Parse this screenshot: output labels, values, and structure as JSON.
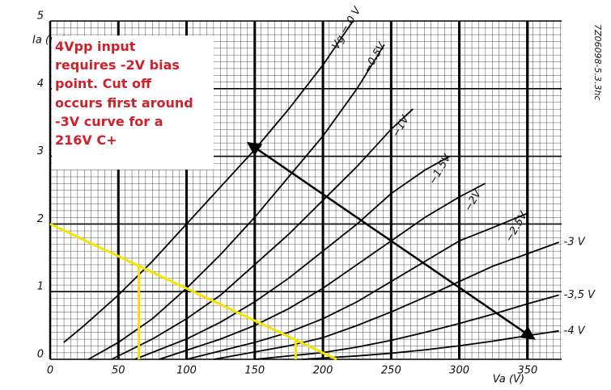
{
  "chart_data": {
    "type": "line",
    "y_label": "Ia (mA)",
    "x_label": "Va (V)",
    "side_code": "7Z06098-5.3.3hc",
    "annotation": [
      "4Vpp input",
      "requires -2V bias",
      "point. Cut off",
      "occurs first around",
      "-3V curve for a",
      "216V C+"
    ],
    "xlim": [
      0,
      375
    ],
    "ylim": [
      0,
      5
    ],
    "xticks": [
      0,
      50,
      100,
      150,
      200,
      250,
      300,
      350
    ],
    "yticks": [
      0,
      1,
      2,
      3,
      4,
      5
    ],
    "grid": true,
    "series": [
      {
        "name": "Vg = 0 V",
        "color": "#000000",
        "x": [
          10,
          25,
          50,
          75,
          100,
          125,
          150,
          175,
          200,
          222
        ],
        "values": [
          0.25,
          0.5,
          0.95,
          1.45,
          2.0,
          2.55,
          3.1,
          3.7,
          4.35,
          5.0
        ]
      },
      {
        "name": "−0.5V",
        "color": "#000000",
        "x": [
          28,
          50,
          75,
          100,
          125,
          150,
          175,
          200,
          225,
          245
        ],
        "values": [
          0,
          0.25,
          0.6,
          1.05,
          1.55,
          2.1,
          2.7,
          3.3,
          4.0,
          4.65
        ]
      },
      {
        "name": "−1V",
        "color": "#000000",
        "x": [
          45,
          75,
          100,
          125,
          150,
          175,
          200,
          225,
          250,
          266
        ],
        "values": [
          0,
          0.3,
          0.6,
          0.95,
          1.4,
          1.85,
          2.35,
          2.85,
          3.4,
          3.7
        ]
      },
      {
        "name": "−1.5V",
        "color": "#000000",
        "x": [
          62,
          100,
          125,
          150,
          175,
          200,
          225,
          250,
          275,
          293
        ],
        "values": [
          0,
          0.3,
          0.55,
          0.85,
          1.2,
          1.6,
          2.0,
          2.45,
          2.8,
          3.0
        ]
      },
      {
        "name": "−2V",
        "color": "#000000",
        "x": [
          80,
          125,
          150,
          175,
          200,
          225,
          250,
          275,
          300,
          319
        ],
        "values": [
          0,
          0.3,
          0.5,
          0.75,
          1.05,
          1.4,
          1.75,
          2.1,
          2.4,
          2.6
        ]
      },
      {
        "name": "−2.5V",
        "color": "#000000",
        "x": [
          100,
          150,
          175,
          200,
          225,
          250,
          275,
          300,
          325,
          349
        ],
        "values": [
          0,
          0.25,
          0.4,
          0.6,
          0.85,
          1.15,
          1.45,
          1.75,
          1.95,
          2.15
        ]
      },
      {
        "name": "-3 V",
        "color": "#000000",
        "x": [
          120,
          175,
          200,
          225,
          250,
          275,
          300,
          325,
          350,
          373
        ],
        "values": [
          0,
          0.2,
          0.32,
          0.5,
          0.7,
          0.92,
          1.15,
          1.38,
          1.56,
          1.73
        ]
      },
      {
        "name": "-3,5 V",
        "color": "#000000",
        "x": [
          150,
          200,
          225,
          250,
          275,
          300,
          325,
          350,
          373
        ],
        "values": [
          0,
          0.1,
          0.18,
          0.28,
          0.4,
          0.53,
          0.67,
          0.82,
          0.95
        ]
      },
      {
        "name": "-4 V",
        "color": "#000000",
        "x": [
          185,
          225,
          250,
          275,
          300,
          325,
          350,
          373
        ],
        "values": [
          0,
          0.05,
          0.09,
          0.14,
          0.2,
          0.27,
          0.35,
          0.42
        ]
      }
    ],
    "load_lines": [
      {
        "color": "#f5e400",
        "x": [
          0,
          210
        ],
        "values": [
          2,
          0
        ]
      },
      {
        "color": "#f5e400",
        "x": [
          65,
          65
        ],
        "values": [
          0,
          1.37
        ]
      },
      {
        "color": "#f5e400",
        "x": [
          180,
          180
        ],
        "values": [
          0,
          0.28
        ]
      }
    ],
    "arrow": {
      "color": "#000000",
      "x": [
        145,
        355
      ],
      "values": [
        3.2,
        0.3
      ]
    }
  }
}
